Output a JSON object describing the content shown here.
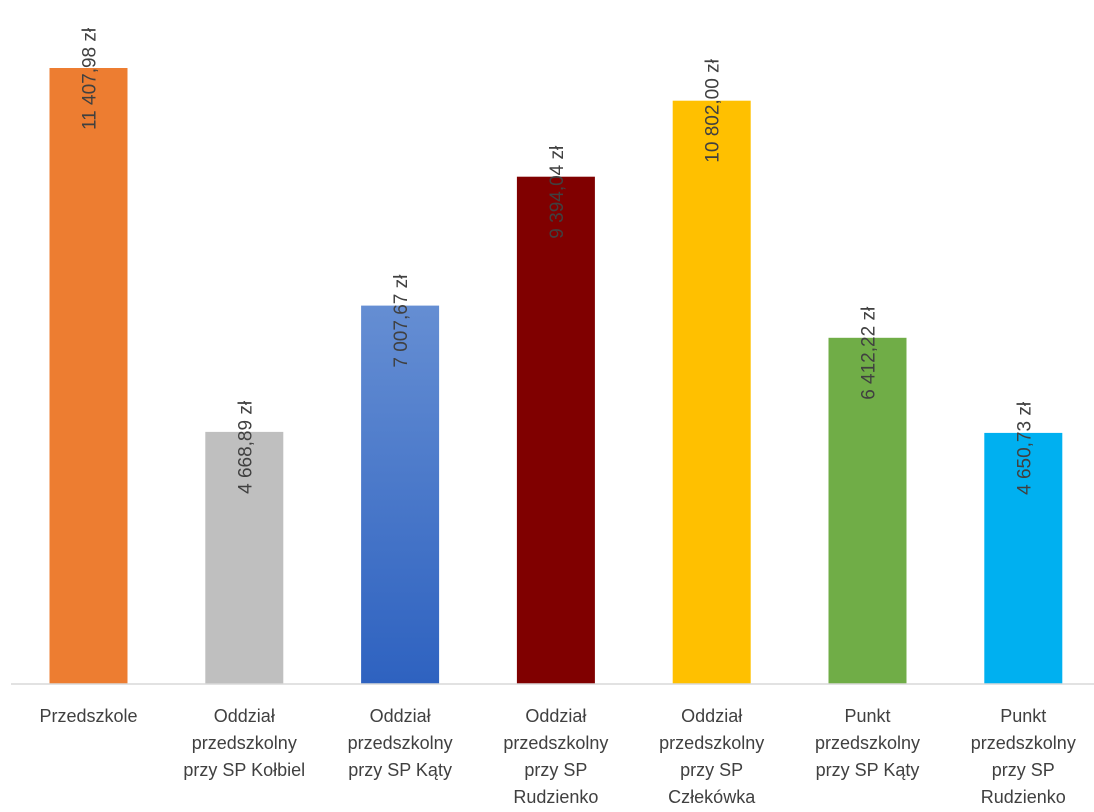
{
  "chart_data": {
    "type": "bar",
    "title": "",
    "xlabel": "",
    "ylabel": "",
    "ylim": [
      0,
      11407.98
    ],
    "grid": false,
    "legend": "none",
    "categories": [
      "Przedszkole",
      "Oddział przedszkolny przy SP Kołbiel",
      "Oddział przedszkolny przy SP Kąty",
      "Oddział przedszkolny przy SP Rudzienko",
      "Oddział przedszkolny przy SP Człekówka",
      "Punkt przedszkolny przy SP Kąty",
      "Punkt przedszkolny przy SP Rudzienko"
    ],
    "category_lines": [
      [
        "Przedszkole"
      ],
      [
        "Oddział",
        "przedszkolny",
        "przy SP Kołbiel"
      ],
      [
        "Oddział",
        "przedszkolny",
        "przy SP Kąty"
      ],
      [
        "Oddział",
        "przedszkolny",
        "przy SP",
        "Rudzienko"
      ],
      [
        "Oddział",
        "przedszkolny",
        "przy SP",
        "Człekówka"
      ],
      [
        "Punkt",
        "przedszkolny",
        "przy SP Kąty"
      ],
      [
        "Punkt",
        "przedszkolny",
        "przy SP",
        "Rudzienko"
      ]
    ],
    "values": [
      11407.98,
      4668.89,
      7007.67,
      9394.04,
      10802.0,
      6412.22,
      4650.73
    ],
    "data_labels": [
      "11 407,98 zł",
      "4 668,89 zł",
      "7 007,67 zł",
      "9 394,04 zł",
      "10 802,00 zł",
      "6 412,22 zł",
      "4 650,73 zł"
    ],
    "colors": [
      "#ED7D31",
      "#BFBFBF",
      "gradient-blue",
      "#800000",
      "#FFC000",
      "#70AD47",
      "#00B0F0"
    ],
    "gradient_blue": {
      "top": "#658ED3",
      "bottom": "#2E62C0"
    }
  }
}
